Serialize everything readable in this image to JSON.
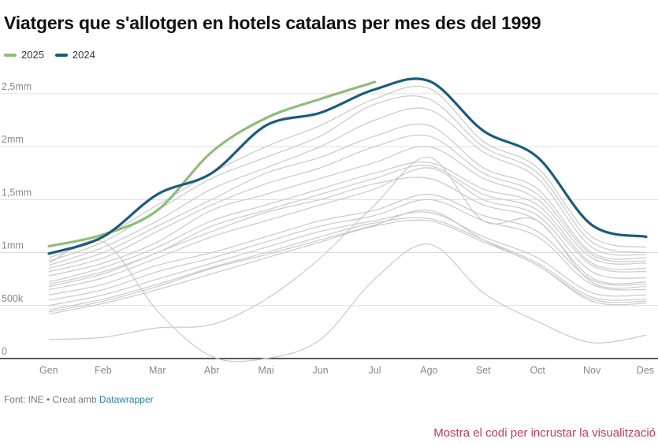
{
  "title": "Viatgers que s'allotgen en hotels catalans per mes des del 1999",
  "footer": {
    "source_label": "Font: INE • Creat amb",
    "link_label": "Datawrapper"
  },
  "embed_link": "Mostra el codi per incrustar la visualització",
  "chart_data": {
    "type": "line",
    "title": "Viatgers que s'allotgen en hotels catalans per mes des del 1999",
    "x": [
      "Gen",
      "Feb",
      "Mar",
      "Abr",
      "Mai",
      "Jun",
      "Jul",
      "Ago",
      "Set",
      "Oct",
      "Nov",
      "Des"
    ],
    "ylim": [
      0,
      2700000
    ],
    "yticks": [
      {
        "value": 0,
        "label": "0"
      },
      {
        "value": 500000,
        "label": "500k"
      },
      {
        "value": 1000000,
        "label": "1mm"
      },
      {
        "value": 1500000,
        "label": "1,5mm"
      },
      {
        "value": 2000000,
        "label": "2mm"
      },
      {
        "value": 2500000,
        "label": "2,5mm"
      }
    ],
    "grid": true,
    "legend_position": "top-left",
    "highlight_series": [
      {
        "name": "2025",
        "color": "#8fbc7a",
        "values": [
          1060000,
          1170000,
          1400000,
          1950000,
          2270000,
          2450000,
          2610000,
          null,
          null,
          null,
          null,
          null
        ]
      },
      {
        "name": "2024",
        "color": "#1a5c78",
        "values": [
          990000,
          1150000,
          1550000,
          1750000,
          2200000,
          2320000,
          2540000,
          2620000,
          2150000,
          1900000,
          1260000,
          1150000
        ]
      }
    ],
    "background_series": [
      {
        "values": [
          420000,
          520000,
          650000,
          800000,
          950000,
          1100000,
          1250000,
          1300000,
          1100000,
          880000,
          540000,
          520000
        ]
      },
      {
        "values": [
          460000,
          560000,
          700000,
          860000,
          1000000,
          1150000,
          1280000,
          1320000,
          1120000,
          900000,
          580000,
          560000
        ]
      },
      {
        "values": [
          500000,
          600000,
          750000,
          900000,
          1050000,
          1200000,
          1300000,
          1380000,
          1150000,
          950000,
          620000,
          600000
        ]
      },
      {
        "values": [
          550000,
          650000,
          820000,
          950000,
          1100000,
          1250000,
          1350000,
          1500000,
          1300000,
          1150000,
          700000,
          650000
        ]
      },
      {
        "values": [
          600000,
          700000,
          880000,
          1000000,
          1150000,
          1300000,
          1400000,
          1550000,
          1350000,
          1200000,
          740000,
          700000
        ]
      },
      {
        "values": [
          650000,
          760000,
          950000,
          1150000,
          1300000,
          1450000,
          1600000,
          1800000,
          1500000,
          1350000,
          820000,
          760000
        ]
      },
      {
        "values": [
          700000,
          820000,
          1000000,
          1250000,
          1400000,
          1550000,
          1700000,
          1820000,
          1550000,
          1400000,
          880000,
          820000
        ]
      },
      {
        "values": [
          720000,
          860000,
          1050000,
          1300000,
          1450000,
          1600000,
          1750000,
          1850000,
          1600000,
          1450000,
          900000,
          850000
        ]
      },
      {
        "values": [
          780000,
          900000,
          1100000,
          1400000,
          1550000,
          1700000,
          1850000,
          2000000,
          1700000,
          1500000,
          950000,
          900000
        ]
      },
      {
        "values": [
          820000,
          950000,
          1200000,
          1450000,
          1650000,
          1800000,
          2000000,
          2100000,
          1750000,
          1550000,
          980000,
          920000
        ]
      },
      {
        "values": [
          850000,
          1000000,
          1250000,
          1500000,
          1750000,
          1900000,
          2100000,
          2200000,
          1800000,
          1600000,
          1000000,
          950000
        ]
      },
      {
        "values": [
          880000,
          1050000,
          1300000,
          1600000,
          1800000,
          2000000,
          2250000,
          2350000,
          1950000,
          1700000,
          1050000,
          980000
        ]
      },
      {
        "values": [
          920000,
          1100000,
          1400000,
          1700000,
          1900000,
          2100000,
          2400000,
          2450000,
          2000000,
          1750000,
          1100000,
          1000000
        ]
      },
      {
        "values": [
          950000,
          1150000,
          1450000,
          1750000,
          2000000,
          2200000,
          2450000,
          2550000,
          2050000,
          1800000,
          1150000,
          1050000
        ]
      },
      {
        "values": [
          680000,
          800000,
          1000000,
          1200000,
          1380000,
          1500000,
          1650000,
          1700000,
          1450000,
          1300000,
          760000,
          720000
        ]
      },
      {
        "values": [
          440000,
          540000,
          680000,
          850000,
          980000,
          1120000,
          1260000,
          1400000,
          1120000,
          880000,
          560000,
          540000
        ]
      },
      {
        "values": [
          180000,
          200000,
          290000,
          320000,
          560000,
          950000,
          1450000,
          1900000,
          1300000,
          1300000,
          720000,
          680000
        ]
      },
      {
        "values": [
          900000,
          1100000,
          450000,
          20000,
          0,
          180000,
          750000,
          1080000,
          620000,
          350000,
          150000,
          220000
        ]
      }
    ]
  }
}
